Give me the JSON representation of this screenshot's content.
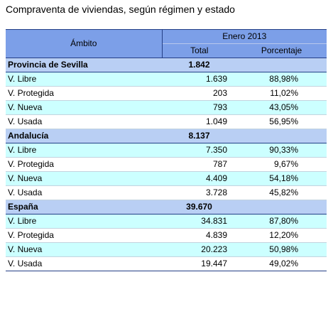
{
  "title": "Compraventa de viviendas, según régimen y estado",
  "header": {
    "ambito": "Ámbito",
    "period": "Enero 2013",
    "total": "Total",
    "porcentaje": "Porcentaje"
  },
  "sections": [
    {
      "name": "Provincia de Sevilla",
      "total": "1.842",
      "rows": [
        {
          "label": "V. Libre",
          "total": "1.639",
          "pct": "88,98%"
        },
        {
          "label": "V. Protegida",
          "total": "203",
          "pct": "11,02%"
        },
        {
          "label": "V. Nueva",
          "total": "793",
          "pct": "43,05%"
        },
        {
          "label": "V. Usada",
          "total": "1.049",
          "pct": "56,95%"
        }
      ]
    },
    {
      "name": "Andalucía",
      "total": "8.137",
      "rows": [
        {
          "label": "V. Libre",
          "total": "7.350",
          "pct": "90,33%"
        },
        {
          "label": "V. Protegida",
          "total": "787",
          "pct": "9,67%"
        },
        {
          "label": "V. Nueva",
          "total": "4.409",
          "pct": "54,18%"
        },
        {
          "label": "V. Usada",
          "total": "3.728",
          "pct": "45,82%"
        }
      ]
    },
    {
      "name": "España",
      "total": "39.670",
      "rows": [
        {
          "label": "V. Libre",
          "total": "34.831",
          "pct": "87,80%"
        },
        {
          "label": "V. Protegida",
          "total": "4.839",
          "pct": "12,20%"
        },
        {
          "label": "V. Nueva",
          "total": "20.223",
          "pct": "50,98%"
        },
        {
          "label": "V. Usada",
          "total": "19.447",
          "pct": "49,02%"
        }
      ]
    }
  ]
}
